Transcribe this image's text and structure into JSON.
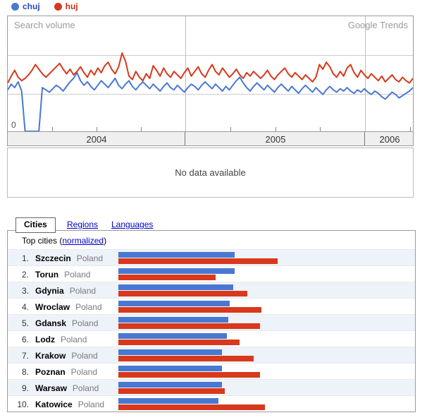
{
  "colors": {
    "blue": "#4878d2",
    "red": "#d8381c",
    "blue_text": "#2a46c1",
    "red_text": "#c23110",
    "link": "#0000cc"
  },
  "legend": {
    "items": [
      {
        "label": "chuj",
        "dot_color": "#4878d2",
        "text_color": "#2a46c1"
      },
      {
        "label": "huj",
        "dot_color": "#d8381c",
        "text_color": "#c23110"
      }
    ]
  },
  "chart": {
    "title": "Search volume",
    "brand": "Google Trends",
    "zero_label": "0",
    "years": [
      "2004",
      "2005",
      "2006"
    ],
    "no_data_text": "No data available"
  },
  "tabs": {
    "active": "Cities",
    "links": [
      "Regions",
      "Languages"
    ]
  },
  "table_header": {
    "prefix": "Top cities (",
    "link": "normalized",
    "suffix": ")"
  },
  "cities": {
    "country": "Poland",
    "rows": [
      {
        "rank": "1.",
        "city": "Szczecin"
      },
      {
        "rank": "2.",
        "city": "Torun"
      },
      {
        "rank": "3.",
        "city": "Gdynia"
      },
      {
        "rank": "4.",
        "city": "Wroclaw"
      },
      {
        "rank": "5.",
        "city": "Gdansk"
      },
      {
        "rank": "6.",
        "city": "Lodz"
      },
      {
        "rank": "7.",
        "city": "Krakow"
      },
      {
        "rank": "8.",
        "city": "Poznan"
      },
      {
        "rank": "9.",
        "city": "Warsaw"
      },
      {
        "rank": "10.",
        "city": "Katowice"
      }
    ]
  },
  "chart_data": [
    {
      "type": "line",
      "title": "Search volume",
      "x_axis": {
        "labels": [
          "2004",
          "2005",
          "2006"
        ],
        "range": "Jan 2004 - Apr 2006, weekly",
        "grid": true
      },
      "y_axis": {
        "shown_ticks": [
          "0"
        ],
        "scale": "relative search volume, 0-100 estimated (only 0 labeled)"
      },
      "legend_position": "top-left above chart",
      "series": [
        {
          "name": "chuj",
          "color": "#4878d2",
          "values": [
            36,
            41,
            38,
            43,
            35,
            0,
            0,
            0,
            0,
            0,
            38,
            36,
            34,
            37,
            40,
            38,
            35,
            39,
            43,
            46,
            51,
            44,
            40,
            43,
            39,
            36,
            40,
            44,
            41,
            38,
            42,
            46,
            40,
            37,
            41,
            44,
            39,
            36,
            40,
            43,
            40,
            37,
            41,
            38,
            35,
            39,
            42,
            38,
            36,
            40,
            37,
            34,
            38,
            41,
            39,
            36,
            40,
            43,
            40,
            37,
            41,
            38,
            35,
            39,
            36,
            40,
            44,
            47,
            42,
            38,
            35,
            39,
            42,
            39,
            36,
            40,
            37,
            34,
            38,
            41,
            38,
            35,
            39,
            36,
            33,
            37,
            40,
            37,
            34,
            38,
            35,
            32,
            36,
            39,
            36,
            34,
            37,
            35,
            38,
            35,
            33,
            36,
            34,
            37,
            34,
            32,
            35,
            33,
            30,
            28,
            31,
            34,
            32,
            29,
            31,
            33,
            35,
            38
          ]
        },
        {
          "name": "huj",
          "color": "#d8381c",
          "values": [
            42,
            48,
            53,
            47,
            44,
            46,
            49,
            53,
            58,
            54,
            50,
            47,
            50,
            53,
            56,
            59,
            54,
            50,
            54,
            49,
            52,
            56,
            51,
            47,
            53,
            49,
            55,
            51,
            57,
            60,
            54,
            50,
            56,
            68,
            61,
            48,
            45,
            52,
            47,
            44,
            50,
            46,
            57,
            53,
            48,
            55,
            50,
            47,
            52,
            49,
            46,
            51,
            55,
            48,
            52,
            56,
            50,
            47,
            53,
            58,
            52,
            49,
            55,
            51,
            47,
            50,
            54,
            49,
            46,
            51,
            48,
            52,
            49,
            46,
            49,
            53,
            48,
            45,
            49,
            52,
            55,
            50,
            47,
            51,
            48,
            45,
            49,
            46,
            43,
            47,
            58,
            54,
            60,
            56,
            50,
            47,
            52,
            48,
            55,
            58,
            51,
            47,
            53,
            49,
            46,
            50,
            47,
            44,
            48,
            43,
            46,
            49,
            45,
            43,
            47,
            44,
            42,
            46
          ]
        }
      ]
    },
    {
      "type": "bar",
      "title": "Top cities (normalized)",
      "orientation": "horizontal",
      "categories": [
        "Szczecin",
        "Torun",
        "Gdynia",
        "Wroclaw",
        "Gdansk",
        "Lodz",
        "Krakow",
        "Poznan",
        "Warsaw",
        "Katowice"
      ],
      "series": [
        {
          "name": "chuj",
          "color": "#4878d2",
          "values": [
            0.73,
            0.73,
            0.72,
            0.7,
            0.69,
            0.68,
            0.65,
            0.65,
            0.65,
            0.63
          ]
        },
        {
          "name": "huj",
          "color": "#d8381c",
          "values": [
            1.0,
            0.61,
            0.81,
            0.9,
            0.89,
            0.76,
            0.85,
            0.89,
            0.67,
            0.92
          ]
        }
      ],
      "value_scale": "normalized, 1.0 = longest bar"
    }
  ]
}
